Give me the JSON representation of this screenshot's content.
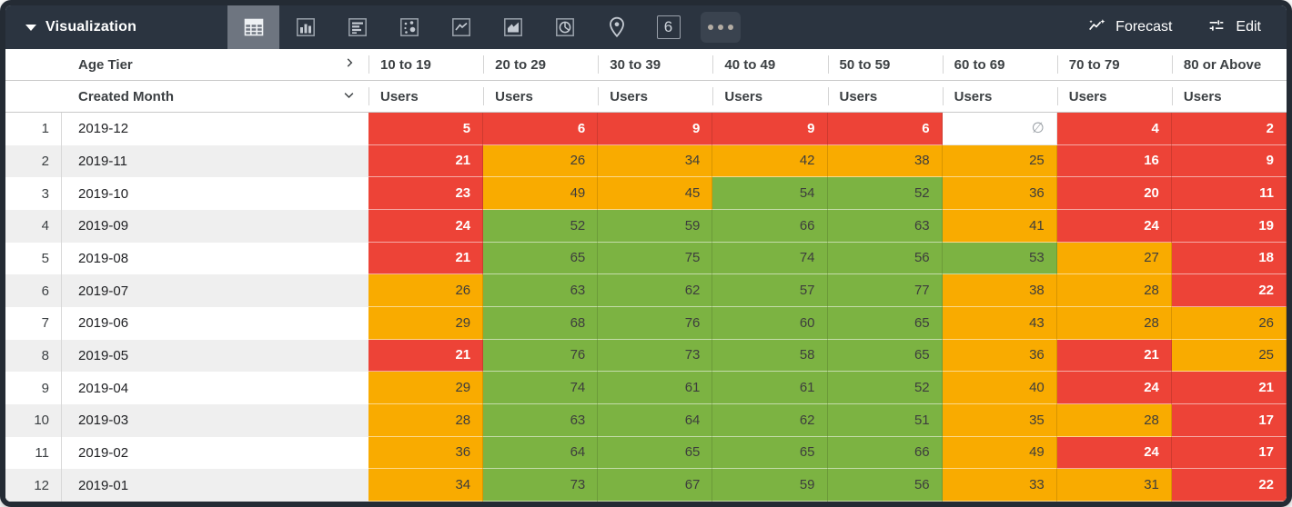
{
  "header": {
    "title": "Visualization",
    "forecast_label": "Forecast",
    "edit_label": "Edit",
    "single_value_label": "6",
    "toolbar_icons": [
      "table",
      "column-chart",
      "bar-chart",
      "scatter-plot",
      "line-chart",
      "area-chart",
      "pie-chart",
      "map",
      "single-value",
      "more"
    ],
    "active_icon": "table"
  },
  "colors": {
    "red": "#ED4337",
    "orange": "#F9AB00",
    "green": "#7CB342",
    "topbar": "#2b3440"
  },
  "table": {
    "column_dimension": "Age Tier",
    "row_dimension": "Created Month",
    "measure_label": "Users",
    "null_symbol": "∅",
    "columns": [
      "10 to 19",
      "20 to 29",
      "30 to 39",
      "40 to 49",
      "50 to 59",
      "60 to 69",
      "70 to 79",
      "80 or Above"
    ],
    "rows": [
      {
        "num": "1",
        "month": "2019-12",
        "cells": [
          {
            "v": "5",
            "c": "red"
          },
          {
            "v": "6",
            "c": "red"
          },
          {
            "v": "9",
            "c": "red"
          },
          {
            "v": "9",
            "c": "red"
          },
          {
            "v": "6",
            "c": "red"
          },
          {
            "v": null,
            "c": "null"
          },
          {
            "v": "4",
            "c": "red"
          },
          {
            "v": "2",
            "c": "red"
          }
        ]
      },
      {
        "num": "2",
        "month": "2019-11",
        "cells": [
          {
            "v": "21",
            "c": "red"
          },
          {
            "v": "26",
            "c": "orange"
          },
          {
            "v": "34",
            "c": "orange"
          },
          {
            "v": "42",
            "c": "orange"
          },
          {
            "v": "38",
            "c": "orange"
          },
          {
            "v": "25",
            "c": "orange"
          },
          {
            "v": "16",
            "c": "red"
          },
          {
            "v": "9",
            "c": "red"
          }
        ]
      },
      {
        "num": "3",
        "month": "2019-10",
        "cells": [
          {
            "v": "23",
            "c": "red"
          },
          {
            "v": "49",
            "c": "orange"
          },
          {
            "v": "45",
            "c": "orange"
          },
          {
            "v": "54",
            "c": "green"
          },
          {
            "v": "52",
            "c": "green"
          },
          {
            "v": "36",
            "c": "orange"
          },
          {
            "v": "20",
            "c": "red"
          },
          {
            "v": "11",
            "c": "red"
          }
        ]
      },
      {
        "num": "4",
        "month": "2019-09",
        "cells": [
          {
            "v": "24",
            "c": "red"
          },
          {
            "v": "52",
            "c": "green"
          },
          {
            "v": "59",
            "c": "green"
          },
          {
            "v": "66",
            "c": "green"
          },
          {
            "v": "63",
            "c": "green"
          },
          {
            "v": "41",
            "c": "orange"
          },
          {
            "v": "24",
            "c": "red"
          },
          {
            "v": "19",
            "c": "red"
          }
        ]
      },
      {
        "num": "5",
        "month": "2019-08",
        "cells": [
          {
            "v": "21",
            "c": "red"
          },
          {
            "v": "65",
            "c": "green"
          },
          {
            "v": "75",
            "c": "green"
          },
          {
            "v": "74",
            "c": "green"
          },
          {
            "v": "56",
            "c": "green"
          },
          {
            "v": "53",
            "c": "green"
          },
          {
            "v": "27",
            "c": "orange"
          },
          {
            "v": "18",
            "c": "red"
          }
        ]
      },
      {
        "num": "6",
        "month": "2019-07",
        "cells": [
          {
            "v": "26",
            "c": "orange"
          },
          {
            "v": "63",
            "c": "green"
          },
          {
            "v": "62",
            "c": "green"
          },
          {
            "v": "57",
            "c": "green"
          },
          {
            "v": "77",
            "c": "green"
          },
          {
            "v": "38",
            "c": "orange"
          },
          {
            "v": "28",
            "c": "orange"
          },
          {
            "v": "22",
            "c": "red"
          }
        ]
      },
      {
        "num": "7",
        "month": "2019-06",
        "cells": [
          {
            "v": "29",
            "c": "orange"
          },
          {
            "v": "68",
            "c": "green"
          },
          {
            "v": "76",
            "c": "green"
          },
          {
            "v": "60",
            "c": "green"
          },
          {
            "v": "65",
            "c": "green"
          },
          {
            "v": "43",
            "c": "orange"
          },
          {
            "v": "28",
            "c": "orange"
          },
          {
            "v": "26",
            "c": "orange"
          }
        ]
      },
      {
        "num": "8",
        "month": "2019-05",
        "cells": [
          {
            "v": "21",
            "c": "red"
          },
          {
            "v": "76",
            "c": "green"
          },
          {
            "v": "73",
            "c": "green"
          },
          {
            "v": "58",
            "c": "green"
          },
          {
            "v": "65",
            "c": "green"
          },
          {
            "v": "36",
            "c": "orange"
          },
          {
            "v": "21",
            "c": "red"
          },
          {
            "v": "25",
            "c": "orange"
          }
        ]
      },
      {
        "num": "9",
        "month": "2019-04",
        "cells": [
          {
            "v": "29",
            "c": "orange"
          },
          {
            "v": "74",
            "c": "green"
          },
          {
            "v": "61",
            "c": "green"
          },
          {
            "v": "61",
            "c": "green"
          },
          {
            "v": "52",
            "c": "green"
          },
          {
            "v": "40",
            "c": "orange"
          },
          {
            "v": "24",
            "c": "red"
          },
          {
            "v": "21",
            "c": "red"
          }
        ]
      },
      {
        "num": "10",
        "month": "2019-03",
        "cells": [
          {
            "v": "28",
            "c": "orange"
          },
          {
            "v": "63",
            "c": "green"
          },
          {
            "v": "64",
            "c": "green"
          },
          {
            "v": "62",
            "c": "green"
          },
          {
            "v": "51",
            "c": "green"
          },
          {
            "v": "35",
            "c": "orange"
          },
          {
            "v": "28",
            "c": "orange"
          },
          {
            "v": "17",
            "c": "red"
          }
        ]
      },
      {
        "num": "11",
        "month": "2019-02",
        "cells": [
          {
            "v": "36",
            "c": "orange"
          },
          {
            "v": "64",
            "c": "green"
          },
          {
            "v": "65",
            "c": "green"
          },
          {
            "v": "65",
            "c": "green"
          },
          {
            "v": "66",
            "c": "green"
          },
          {
            "v": "49",
            "c": "orange"
          },
          {
            "v": "24",
            "c": "red"
          },
          {
            "v": "17",
            "c": "red"
          }
        ]
      },
      {
        "num": "12",
        "month": "2019-01",
        "cells": [
          {
            "v": "34",
            "c": "orange"
          },
          {
            "v": "73",
            "c": "green"
          },
          {
            "v": "67",
            "c": "green"
          },
          {
            "v": "59",
            "c": "green"
          },
          {
            "v": "56",
            "c": "green"
          },
          {
            "v": "33",
            "c": "orange"
          },
          {
            "v": "31",
            "c": "orange"
          },
          {
            "v": "22",
            "c": "red"
          }
        ]
      }
    ]
  }
}
